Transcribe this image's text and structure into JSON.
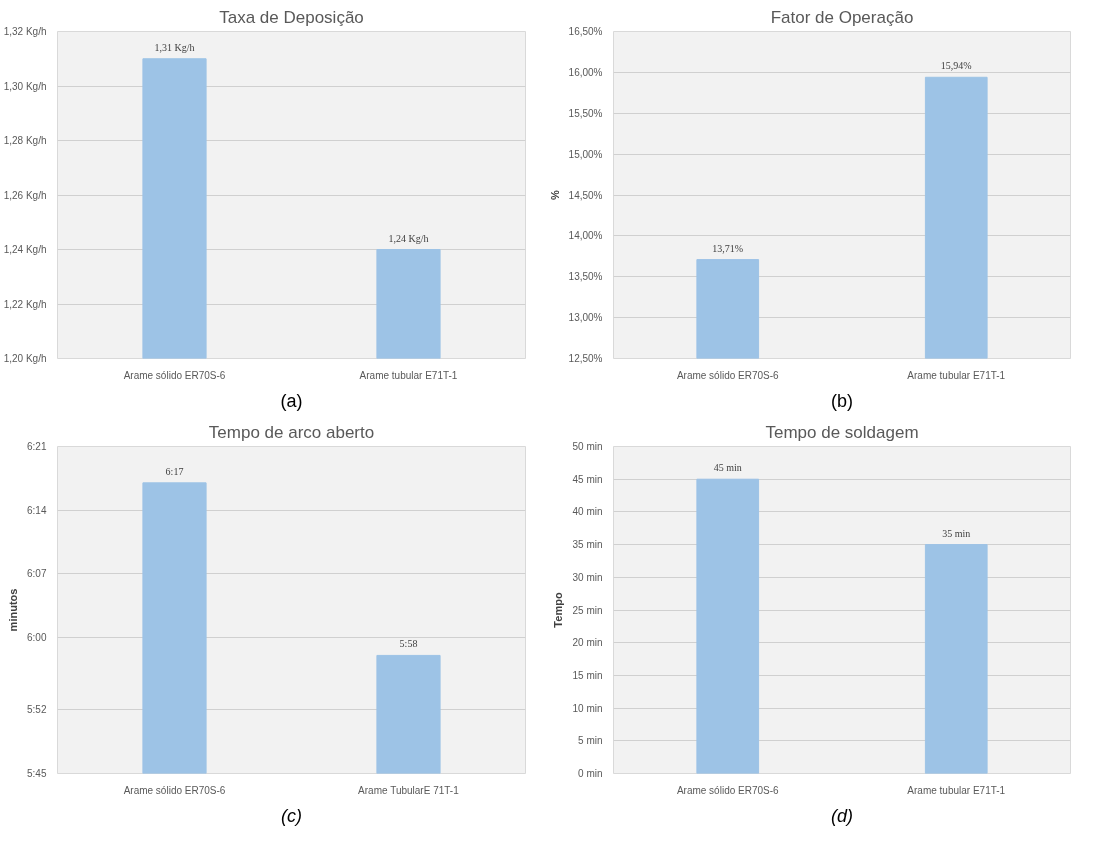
{
  "chart_data": [
    {
      "type": "bar",
      "title": "Taxa de Deposição",
      "categories": [
        "Arame sólido ER70S-6",
        "Arame tubular E71T-1"
      ],
      "values": [
        1.31,
        1.24
      ],
      "color": "#9dc3e6",
      "value_labels": [
        "1,31 Kg/h",
        "1,24 Kg/h"
      ],
      "ylim": [
        1.2,
        1.32
      ],
      "yticks": [
        {
          "value": 1.2,
          "label": "1,20 Kg/h"
        },
        {
          "value": 1.22,
          "label": "1,22 Kg/h"
        },
        {
          "value": 1.24,
          "label": "1,24 Kg/h"
        },
        {
          "value": 1.26,
          "label": "1,26 Kg/h"
        },
        {
          "value": 1.28,
          "label": "1,28 Kg/h"
        },
        {
          "value": 1.3,
          "label": "1,30 Kg/h"
        },
        {
          "value": 1.32,
          "label": "1,32 Kg/h"
        }
      ],
      "grid": true,
      "annotations": [
        "(a)"
      ]
    },
    {
      "type": "bar",
      "title": "Fator de Operação",
      "ylabel": "%",
      "categories": [
        "Arame sólido ER70S-6",
        "Arame tubular E71T-1"
      ],
      "values": [
        13.71,
        15.94
      ],
      "color": "#9dc3e6",
      "value_labels": [
        "13,71%",
        "15,94%"
      ],
      "ylim": [
        12.5,
        16.5
      ],
      "yticks": [
        {
          "value": 12.5,
          "label": "12,50%"
        },
        {
          "value": 13.0,
          "label": "13,00%"
        },
        {
          "value": 13.5,
          "label": "13,50%"
        },
        {
          "value": 14.0,
          "label": "14,00%"
        },
        {
          "value": 14.5,
          "label": "14,50%"
        },
        {
          "value": 15.0,
          "label": "15,00%"
        },
        {
          "value": 15.5,
          "label": "15,50%"
        },
        {
          "value": 16.0,
          "label": "16,00%"
        },
        {
          "value": 16.5,
          "label": "16,50%"
        }
      ],
      "grid": true,
      "annotations": [
        "(b)"
      ]
    },
    {
      "type": "bar",
      "title": "Tempo de arco aberto",
      "ylabel": "minutos",
      "categories": [
        "Arame sólido ER70S-6",
        "Arame TubularE 71T-1"
      ],
      "values": [
        377,
        358
      ],
      "color": "#9dc3e6",
      "value_labels": [
        "6:17",
        "5:58"
      ],
      "ylim": [
        345,
        381
      ],
      "yticks": [
        {
          "value": 345,
          "label": "5:45"
        },
        {
          "value": 352,
          "label": "5:52"
        },
        {
          "value": 360,
          "label": "6:00"
        },
        {
          "value": 367,
          "label": "6:07"
        },
        {
          "value": 374,
          "label": "6:14"
        },
        {
          "value": 381,
          "label": "6:21"
        }
      ],
      "grid": true,
      "annotations": [
        "(c)"
      ]
    },
    {
      "type": "bar",
      "title": "Tempo de soldagem",
      "ylabel": "Tempo",
      "categories": [
        "Arame sólido ER70S-6",
        "Arame tubular E71T-1"
      ],
      "values": [
        45,
        35
      ],
      "color": "#9dc3e6",
      "value_labels": [
        "45 min",
        "35 min"
      ],
      "ylim": [
        0,
        50
      ],
      "yticks": [
        {
          "value": 0,
          "label": "0 min"
        },
        {
          "value": 5,
          "label": "5 min"
        },
        {
          "value": 10,
          "label": "10 min"
        },
        {
          "value": 15,
          "label": "15 min"
        },
        {
          "value": 20,
          "label": "20 min"
        },
        {
          "value": 25,
          "label": "25 min"
        },
        {
          "value": 30,
          "label": "30 min"
        },
        {
          "value": 35,
          "label": "35 min"
        },
        {
          "value": 40,
          "label": "40 min"
        },
        {
          "value": 45,
          "label": "45 min"
        },
        {
          "value": 50,
          "label": "50 min"
        }
      ],
      "grid": true,
      "annotations": [
        "(d)"
      ]
    }
  ]
}
